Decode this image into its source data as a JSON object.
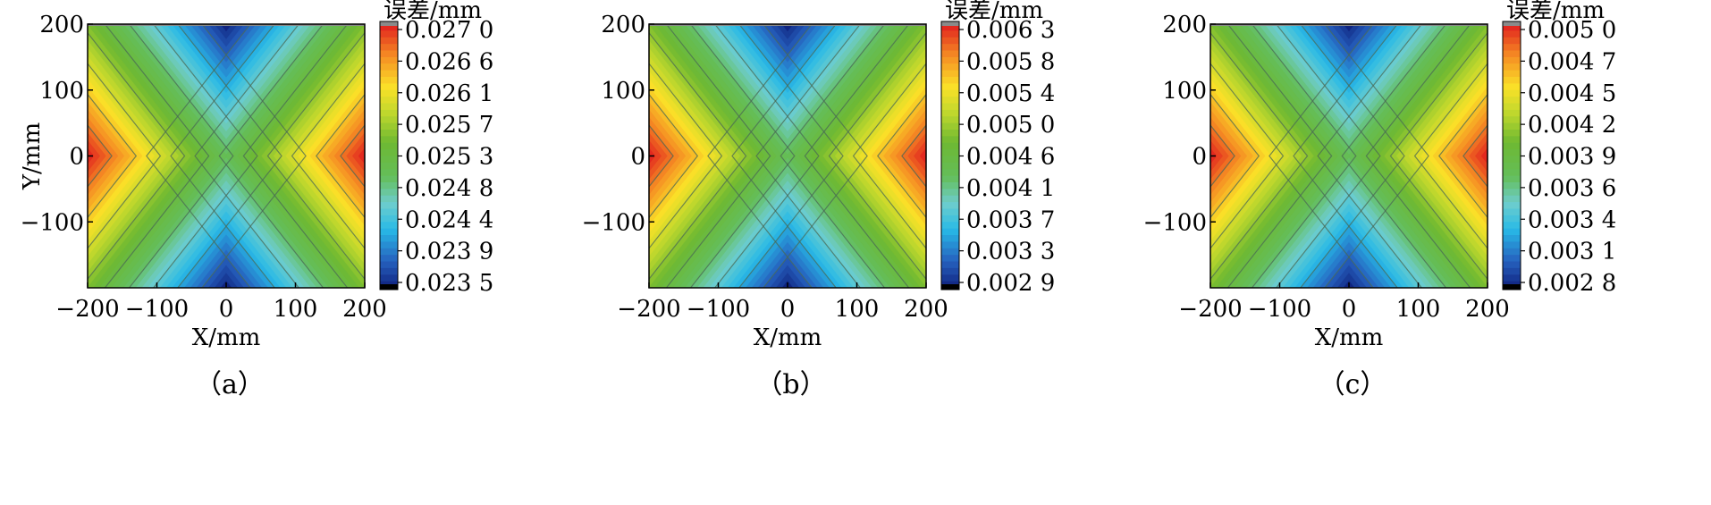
{
  "chart_data": [
    {
      "type": "heatmap",
      "subplot_label": "（a）",
      "xlabel": "X/mm",
      "ylabel": "Y/mm",
      "xlim": [
        -200,
        200
      ],
      "ylim": [
        -200,
        200
      ],
      "xticks": [
        "−200",
        "−100",
        "0",
        "100",
        "200"
      ],
      "yticks": [
        "200",
        "100",
        "0",
        "−100"
      ],
      "colorbar_title": "误差/mm",
      "colorbar_ticks": [
        "0.027 0",
        "0.026 6",
        "0.026 1",
        "0.025 7",
        "0.025 3",
        "0.024 8",
        "0.024 4",
        "0.023 9",
        "0.023 5"
      ],
      "value_min": 0.0235,
      "value_max": 0.027,
      "field": "error increases with |X| - 0.75|Y|; minimum at (0, ±200), maximum at (±200, 0)",
      "min_points": [
        [
          0,
          200,
          0.0235
        ],
        [
          0,
          -200,
          0.0235
        ]
      ],
      "max_points": [
        [
          -200,
          0,
          0.027
        ],
        [
          200,
          0,
          0.027
        ]
      ],
      "colormap": "rainbow",
      "contour_lines": true
    },
    {
      "type": "heatmap",
      "subplot_label": "（b）",
      "xlabel": "X/mm",
      "ylabel": "",
      "xlim": [
        -200,
        200
      ],
      "ylim": [
        -200,
        200
      ],
      "xticks": [
        "−200",
        "−100",
        "0",
        "100",
        "200"
      ],
      "yticks": [
        "200",
        "100",
        "0",
        "−100"
      ],
      "colorbar_title": "误差/mm",
      "colorbar_ticks": [
        "0.006 3",
        "0.005 8",
        "0.005 4",
        "0.005 0",
        "0.004 6",
        "0.004 1",
        "0.003 7",
        "0.003 3",
        "0.002 9"
      ],
      "value_min": 0.0029,
      "value_max": 0.0063,
      "field": "error increases with |X| - 0.75|Y|; minimum at (0, ±200), maximum at (±200, 0)",
      "min_points": [
        [
          0,
          200,
          0.0029
        ],
        [
          0,
          -200,
          0.0029
        ]
      ],
      "max_points": [
        [
          -200,
          0,
          0.0063
        ],
        [
          200,
          0,
          0.0063
        ]
      ],
      "colormap": "rainbow",
      "contour_lines": true
    },
    {
      "type": "heatmap",
      "subplot_label": "（c）",
      "xlabel": "X/mm",
      "ylabel": "",
      "xlim": [
        -200,
        200
      ],
      "ylim": [
        -200,
        200
      ],
      "xticks": [
        "−200",
        "−100",
        "0",
        "100",
        "200"
      ],
      "yticks": [
        "200",
        "100",
        "0",
        "−100"
      ],
      "colorbar_title": "误差/mm",
      "colorbar_ticks": [
        "0.005 0",
        "0.004 7",
        "0.004 5",
        "0.004 2",
        "0.003 9",
        "0.003 6",
        "0.003 4",
        "0.003 1",
        "0.002 8"
      ],
      "value_min": 0.0028,
      "value_max": 0.005,
      "field": "error increases with |X| - 0.75|Y|; minimum at (0, ±200), maximum at (±200, 0)",
      "min_points": [
        [
          0,
          200,
          0.0028
        ],
        [
          0,
          -200,
          0.0028
        ]
      ],
      "max_points": [
        [
          -200,
          0,
          0.005
        ],
        [
          200,
          0,
          0.005
        ]
      ],
      "colormap": "rainbow",
      "contour_lines": true
    }
  ]
}
